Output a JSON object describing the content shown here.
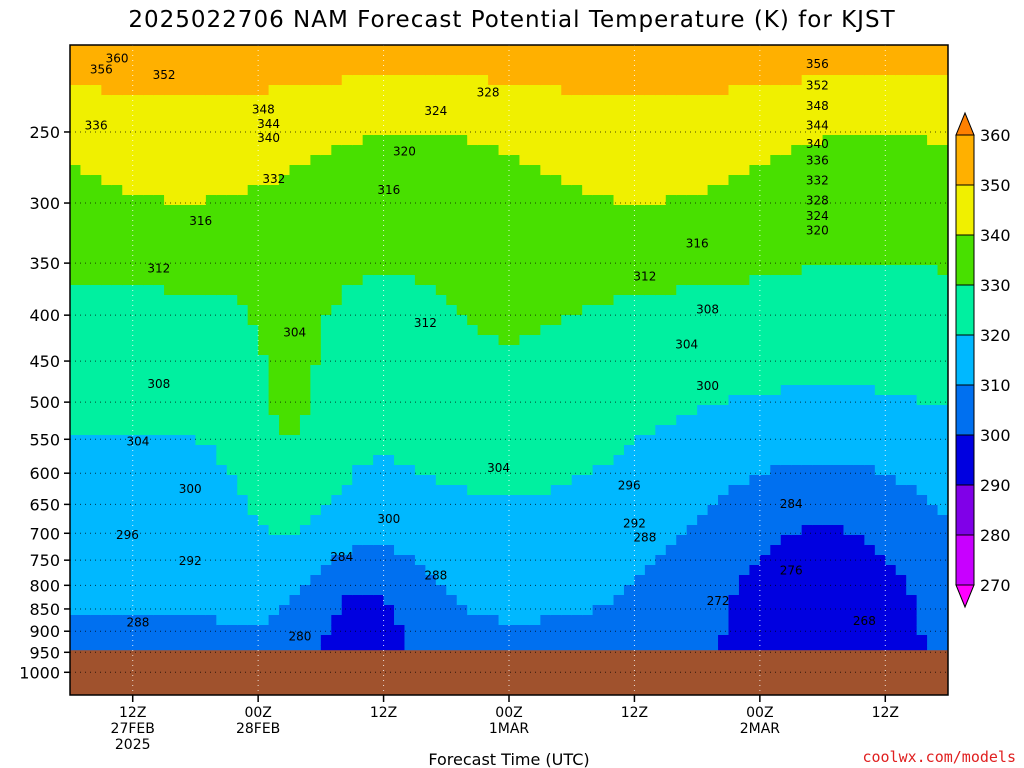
{
  "chart_data": {
    "type": "contour",
    "title": "2025022706 NAM Forecast Potential Temperature (K) for KJST",
    "xlabel": "Forecast Time (UTC)",
    "ylabel": "",
    "credit": "coolwx.com/models",
    "y_scale": "log",
    "y_inverted": true,
    "y_ticks": [
      250,
      300,
      350,
      400,
      450,
      500,
      550,
      600,
      650,
      700,
      750,
      800,
      850,
      900,
      950,
      1000
    ],
    "ylim": [
      1060,
      200
    ],
    "x_ticks": [
      {
        "hour": 6,
        "lines": [
          "12Z",
          "27FEB",
          "2025"
        ]
      },
      {
        "hour": 18,
        "lines": [
          "00Z",
          "28FEB"
        ]
      },
      {
        "hour": 30,
        "lines": [
          "12Z"
        ]
      },
      {
        "hour": 42,
        "lines": [
          "00Z",
          "1MAR"
        ]
      },
      {
        "hour": 54,
        "lines": [
          "12Z"
        ]
      },
      {
        "hour": 66,
        "lines": [
          "00Z",
          "2MAR"
        ]
      },
      {
        "hour": 78,
        "lines": [
          "12Z"
        ]
      }
    ],
    "xlim": [
      0,
      84
    ],
    "surface_pressure": 945,
    "colorbar": {
      "levels": [
        270,
        280,
        290,
        300,
        310,
        320,
        330,
        340,
        350,
        360
      ],
      "colors": [
        "#ff00ff",
        "#c800ff",
        "#8000e8",
        "#0000e0",
        "#0070f0",
        "#00b8ff",
        "#00f0a0",
        "#48e000",
        "#f0f000",
        "#ffb000",
        "#ff8000"
      ]
    },
    "contour_labels": [
      {
        "value": "360",
        "hour": 4.5,
        "p": 207
      },
      {
        "value": "356",
        "hour": 3,
        "p": 213
      },
      {
        "value": "352",
        "hour": 9,
        "p": 216
      },
      {
        "value": "336",
        "hour": 2.5,
        "p": 246
      },
      {
        "value": "348",
        "hour": 18.5,
        "p": 236
      },
      {
        "value": "344",
        "hour": 19,
        "p": 245
      },
      {
        "value": "340",
        "hour": 19,
        "p": 254
      },
      {
        "value": "332",
        "hour": 19.5,
        "p": 282
      },
      {
        "value": "328",
        "hour": 40,
        "p": 226
      },
      {
        "value": "324",
        "hour": 35,
        "p": 237
      },
      {
        "value": "320",
        "hour": 32,
        "p": 263
      },
      {
        "value": "316",
        "hour": 30.5,
        "p": 290
      },
      {
        "value": "316",
        "hour": 12.5,
        "p": 314
      },
      {
        "value": "312",
        "hour": 8.5,
        "p": 355
      },
      {
        "value": "304",
        "hour": 21.5,
        "p": 418
      },
      {
        "value": "312",
        "hour": 34,
        "p": 408
      },
      {
        "value": "312",
        "hour": 55,
        "p": 362
      },
      {
        "value": "316",
        "hour": 60,
        "p": 333
      },
      {
        "value": "308",
        "hour": 61,
        "p": 394
      },
      {
        "value": "304",
        "hour": 59,
        "p": 431
      },
      {
        "value": "300",
        "hour": 61,
        "p": 480
      },
      {
        "value": "308",
        "hour": 8.5,
        "p": 477
      },
      {
        "value": "304",
        "hour": 6.5,
        "p": 553
      },
      {
        "value": "304",
        "hour": 41,
        "p": 592
      },
      {
        "value": "300",
        "hour": 11.5,
        "p": 625
      },
      {
        "value": "296",
        "hour": 5.5,
        "p": 703
      },
      {
        "value": "292",
        "hour": 11.5,
        "p": 752
      },
      {
        "value": "288",
        "hour": 6.5,
        "p": 880
      },
      {
        "value": "284",
        "hour": 26,
        "p": 744
      },
      {
        "value": "288",
        "hour": 35,
        "p": 780
      },
      {
        "value": "280",
        "hour": 22,
        "p": 912
      },
      {
        "value": "300",
        "hour": 30.5,
        "p": 675
      },
      {
        "value": "296",
        "hour": 53.5,
        "p": 619
      },
      {
        "value": "292",
        "hour": 54,
        "p": 683
      },
      {
        "value": "288",
        "hour": 55,
        "p": 708
      },
      {
        "value": "284",
        "hour": 69,
        "p": 649
      },
      {
        "value": "276",
        "hour": 69,
        "p": 770
      },
      {
        "value": "272",
        "hour": 62,
        "p": 833
      },
      {
        "value": "268",
        "hour": 76,
        "p": 877
      },
      {
        "value": "356",
        "hour": 71.5,
        "p": 210
      },
      {
        "value": "352",
        "hour": 71.5,
        "p": 222
      },
      {
        "value": "348",
        "hour": 71.5,
        "p": 234
      },
      {
        "value": "344",
        "hour": 71.5,
        "p": 246
      },
      {
        "value": "340",
        "hour": 71.5,
        "p": 258
      },
      {
        "value": "336",
        "hour": 71.5,
        "p": 269
      },
      {
        "value": "332",
        "hour": 71.5,
        "p": 283
      },
      {
        "value": "328",
        "hour": 71.5,
        "p": 298
      },
      {
        "value": "324",
        "hour": 71.5,
        "p": 310
      },
      {
        "value": "320",
        "hour": 71.5,
        "p": 322
      }
    ]
  }
}
